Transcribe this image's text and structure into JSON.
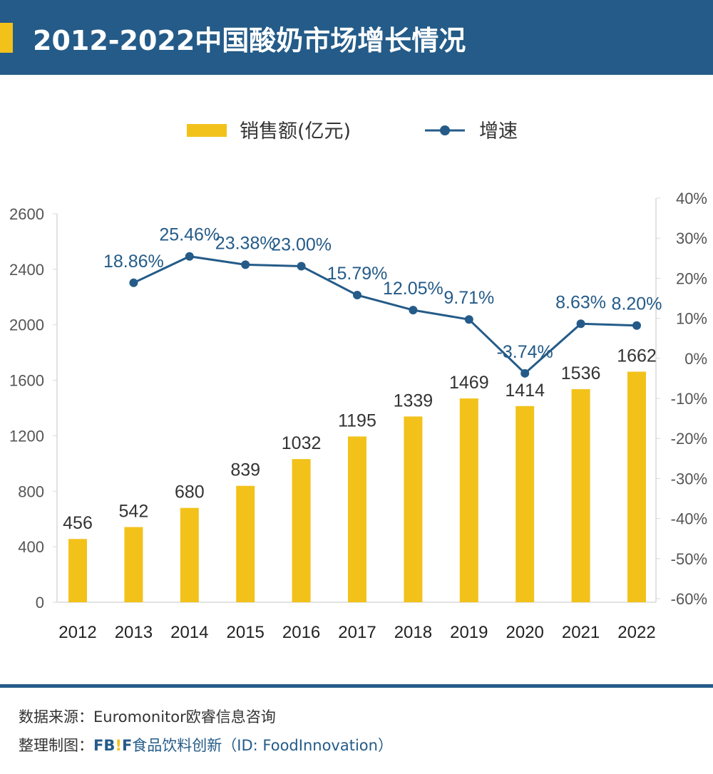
{
  "title": "2012-2022中国酸奶市场增长情况",
  "colors": {
    "header": "#245b88",
    "bar": "#f2c21b",
    "line": "#245b88",
    "accent": "#f2c21b"
  },
  "chart_data": {
    "type": "bar+line",
    "title": "2012-2022中国酸奶市场增长情况",
    "categories": [
      "2012",
      "2013",
      "2014",
      "2015",
      "2016",
      "2017",
      "2018",
      "2019",
      "2020",
      "2021",
      "2022"
    ],
    "series": [
      {
        "name": "销售额(亿元)",
        "type": "bar",
        "axis": "left",
        "values": [
          456,
          542,
          680,
          839,
          1032,
          1195,
          1339,
          1469,
          1414,
          1536,
          1662
        ],
        "labels": [
          "456",
          "542",
          "680",
          "839",
          "1032",
          "1195",
          "1339",
          "1469",
          "1414",
          "1536",
          "1662"
        ]
      },
      {
        "name": "增速",
        "type": "line",
        "axis": "right",
        "values": [
          null,
          18.86,
          25.46,
          23.38,
          23.0,
          15.79,
          12.05,
          9.71,
          -3.74,
          8.63,
          8.2
        ],
        "labels": [
          "",
          "18.86%",
          "25.46%",
          "23.38%",
          "23.00%",
          "15.79%",
          "12.05%",
          "9.71%",
          "-3.74%",
          "8.63%",
          "8.20%"
        ]
      }
    ],
    "left_axis": {
      "ylim": [
        0,
        2800
      ],
      "tick_labels": [
        "0",
        "400",
        "800",
        "1200",
        "1600",
        "2000",
        "2400",
        "2600"
      ]
    },
    "right_axis": {
      "ylim": [
        -60,
        40
      ],
      "tick_labels": [
        "-60%",
        "-50%",
        "-40%",
        "-30%",
        "-20%",
        "-10%",
        "0%",
        "10%",
        "20%",
        "30%",
        "40%"
      ]
    },
    "legend_placement": "top",
    "grid": false
  },
  "footer": {
    "source": "数据来源：Euromonitor欧睿信息咨询",
    "made_by_label": "整理制图：",
    "brand_fb": "FB",
    "brand_bang": "!",
    "brand_f": "F",
    "brand_rest": "食品饮料创新（ID: FoodInnovation）"
  }
}
